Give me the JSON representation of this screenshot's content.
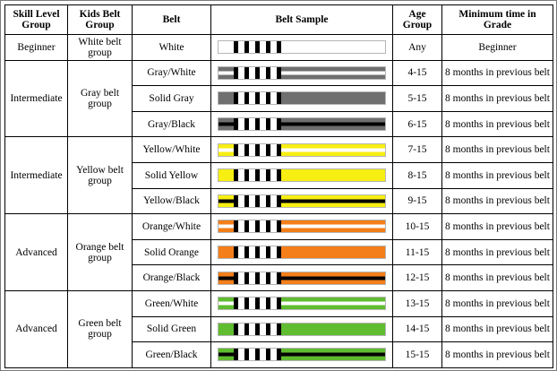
{
  "headers": {
    "skill_group": "Skill Level Group",
    "kids_group": "Kids Belt Group",
    "belt": "Belt",
    "sample": "Belt Sample",
    "age_group": "Age Group",
    "min_time": "Minimum time in Grade"
  },
  "groups": [
    {
      "skill": "Beginner",
      "kids": "White belt group",
      "rows": [
        {
          "belt": "White",
          "age": "Any",
          "min_time": "Beginner",
          "color": "#ffffff",
          "style": "solid"
        }
      ]
    },
    {
      "skill": "Intermediate",
      "kids": "Gray belt group",
      "rows": [
        {
          "belt": "Gray/White",
          "age": "4-15",
          "min_time": "8 months in previous belt",
          "color": "#6f6f6f",
          "style": "white"
        },
        {
          "belt": "Solid Gray",
          "age": "5-15",
          "min_time": "8 months in previous belt",
          "color": "#6f6f6f",
          "style": "solid"
        },
        {
          "belt": "Gray/Black",
          "age": "6-15",
          "min_time": "8 months in previous belt",
          "color": "#6f6f6f",
          "style": "black"
        }
      ]
    },
    {
      "skill": "Intermediate",
      "kids": "Yellow belt group",
      "rows": [
        {
          "belt": "Yellow/White",
          "age": "7-15",
          "min_time": "8 months in previous belt",
          "color": "#f7ee12",
          "style": "white"
        },
        {
          "belt": "Solid Yellow",
          "age": "8-15",
          "min_time": "8 months in previous belt",
          "color": "#f7ee12",
          "style": "solid"
        },
        {
          "belt": "Yellow/Black",
          "age": "9-15",
          "min_time": "8 months in previous belt",
          "color": "#f7ee12",
          "style": "black"
        }
      ]
    },
    {
      "skill": "Advanced",
      "kids": "Orange belt group",
      "rows": [
        {
          "belt": "Orange/White",
          "age": "10-15",
          "min_time": "8 months in previous belt",
          "color": "#f47e19",
          "style": "white"
        },
        {
          "belt": "Solid Orange",
          "age": "11-15",
          "min_time": "8 months in previous belt",
          "color": "#f47e19",
          "style": "solid"
        },
        {
          "belt": "Orange/Black",
          "age": "12-15",
          "min_time": "8 months in previous belt",
          "color": "#f47e19",
          "style": "black"
        }
      ]
    },
    {
      "skill": "Advanced",
      "kids": "Green belt group",
      "rows": [
        {
          "belt": "Green/White",
          "age": "13-15",
          "min_time": "8 months in previous belt",
          "color": "#5fbd2f",
          "style": "white"
        },
        {
          "belt": "Solid Green",
          "age": "14-15",
          "min_time": "8 months in previous belt",
          "color": "#5fbd2f",
          "style": "solid"
        },
        {
          "belt": "Green/Black",
          "age": "15-15",
          "min_time": "8 months in previous belt",
          "color": "#5fbd2f",
          "style": "black"
        }
      ]
    }
  ]
}
